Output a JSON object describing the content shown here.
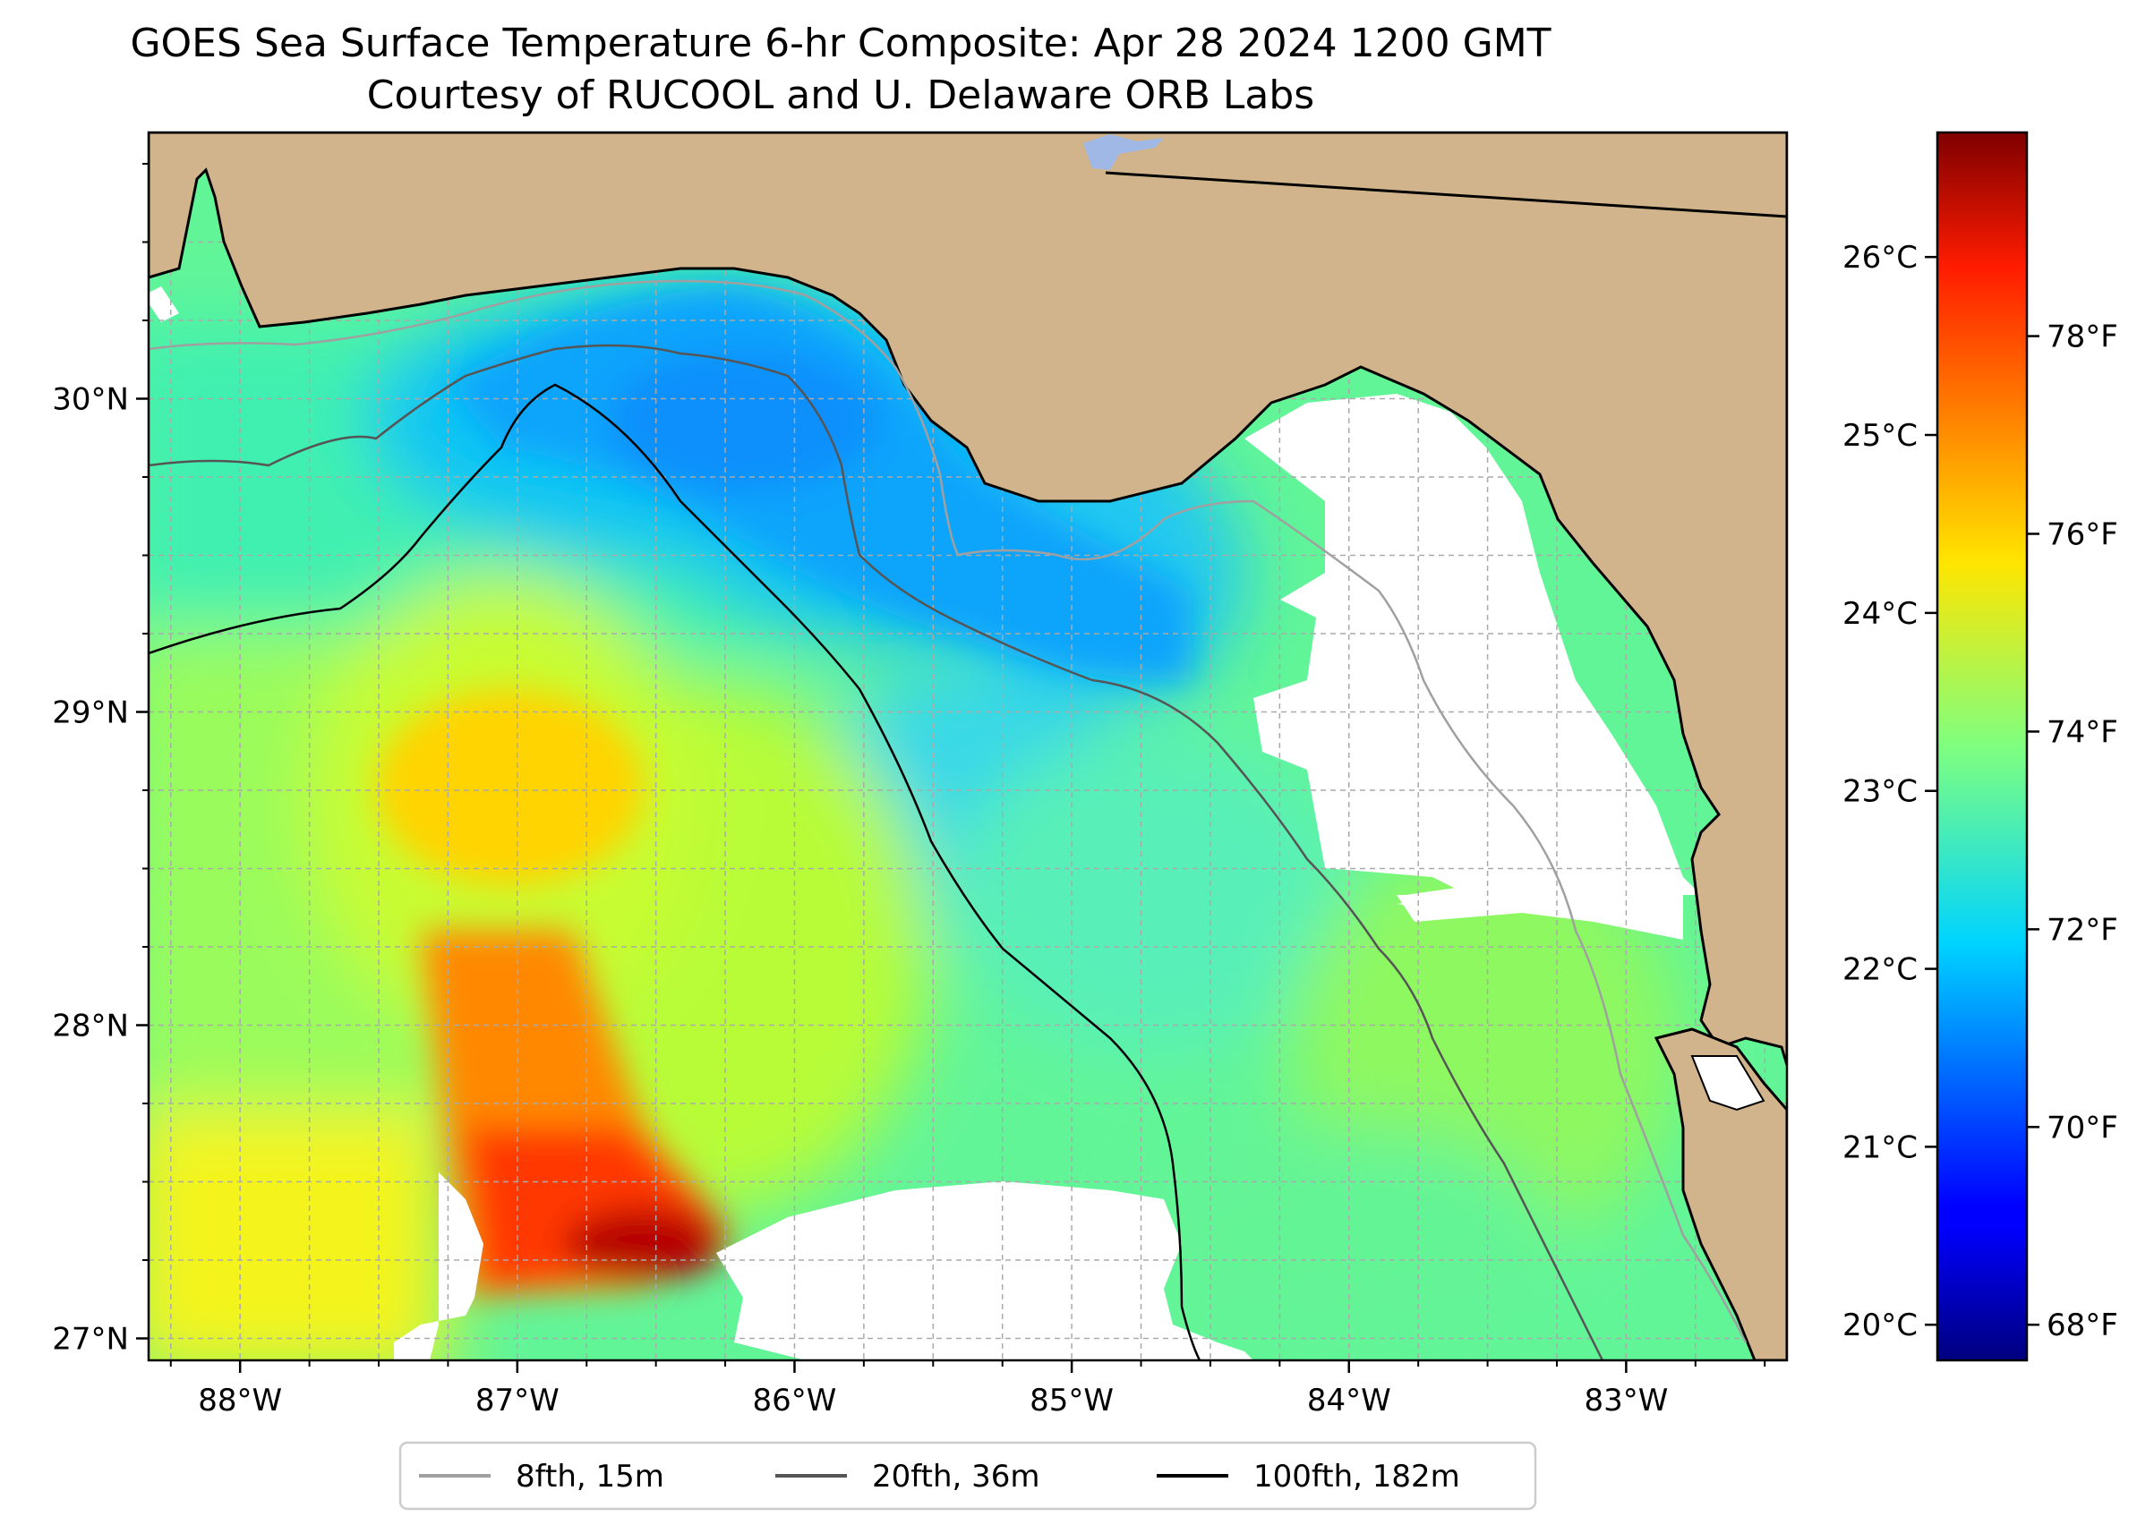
{
  "map": {
    "title": "GOES Sea Surface Temperature 6-hr Composite: Apr 28 2024 1200 GMT",
    "subtitle": "Courtesy of RUCOOL and U. Delaware ORB Labs",
    "region": "Gulf of Mexico — Florida Panhandle / Big Bend",
    "extent": {
      "lon": [
        -88.33,
        -82.42
      ],
      "lat": [
        26.93,
        30.85
      ]
    },
    "lon_ticks": [
      {
        "value": -88,
        "label": "88°W"
      },
      {
        "value": -87,
        "label": "87°W"
      },
      {
        "value": -86,
        "label": "86°W"
      },
      {
        "value": -85,
        "label": "85°W"
      },
      {
        "value": -84,
        "label": "84°W"
      },
      {
        "value": -83,
        "label": "83°W"
      }
    ],
    "lat_ticks": [
      {
        "value": 30,
        "label": "30°N"
      },
      {
        "value": 29,
        "label": "29°N"
      },
      {
        "value": 28,
        "label": "28°N"
      },
      {
        "value": 27,
        "label": "27°N"
      }
    ],
    "colors": {
      "land": "#d2b48c",
      "no_data": "#ffffff",
      "gridline": "#aaaaaa",
      "isobath_15m": "#a0a0a0",
      "isobath_36m": "#555555",
      "isobath_182m": "#000000"
    }
  },
  "colorbar": {
    "colormap": "jet",
    "celsius_ticks": [
      {
        "value": 20,
        "label": "20°C"
      },
      {
        "value": 21,
        "label": "21°C"
      },
      {
        "value": 22,
        "label": "22°C"
      },
      {
        "value": 23,
        "label": "23°C"
      },
      {
        "value": 24,
        "label": "24°C"
      },
      {
        "value": 25,
        "label": "25°C"
      },
      {
        "value": 26,
        "label": "26°C"
      }
    ],
    "fahrenheit_ticks": [
      {
        "value": 68,
        "label": "68°F"
      },
      {
        "value": 70,
        "label": "70°F"
      },
      {
        "value": 72,
        "label": "72°F"
      },
      {
        "value": 74,
        "label": "74°F"
      },
      {
        "value": 76,
        "label": "76°F"
      },
      {
        "value": 78,
        "label": "78°F"
      }
    ],
    "range_c": [
      19.8,
      26.7
    ]
  },
  "legend": {
    "items": [
      {
        "label": "8fth, 15m",
        "color": "#a0a0a0"
      },
      {
        "label": "20fth, 36m",
        "color": "#555555"
      },
      {
        "label": "100fth, 182m",
        "color": "#000000"
      }
    ]
  }
}
